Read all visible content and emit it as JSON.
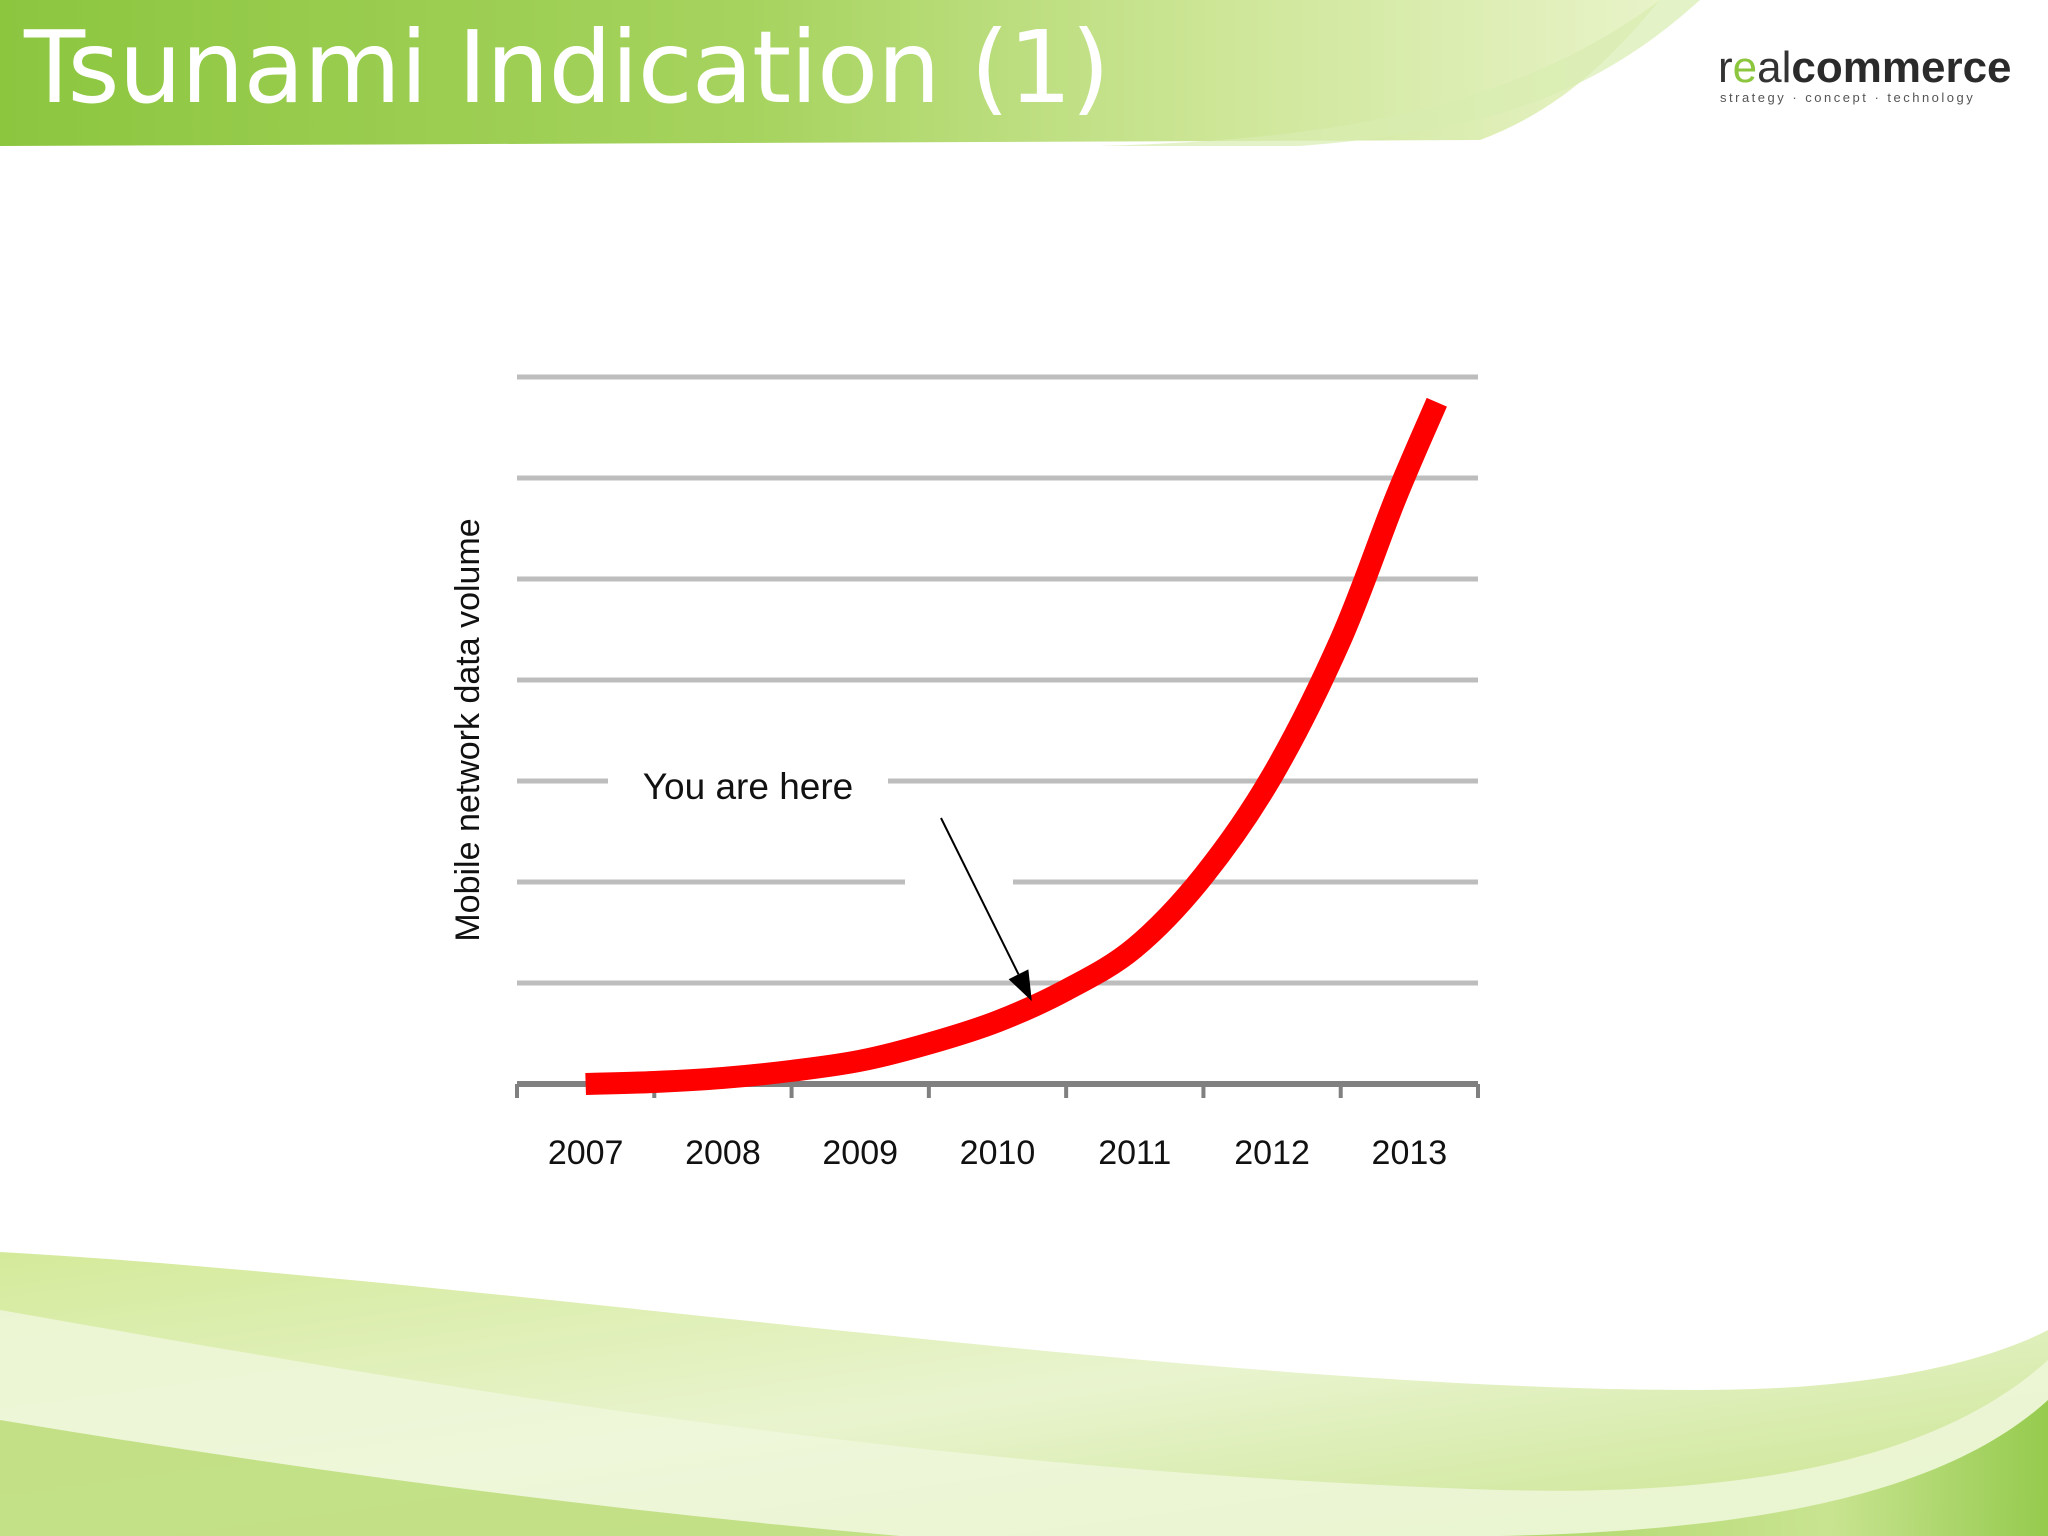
{
  "slide": {
    "title": "Tsunami Indication (1)",
    "logo": {
      "part1": "r",
      "part2": "e",
      "part3": "al",
      "part4": "commerce",
      "tagline": "strategy · concept · technology"
    },
    "colors": {
      "header_green": "#8cc63f",
      "light_green": "#d6eba0",
      "curve_red": "#ff0000",
      "grid_gray": "#bdbdbd"
    }
  },
  "chart_data": {
    "type": "line",
    "title": "",
    "xlabel": "",
    "ylabel": "Mobile network data volume",
    "categories": [
      "2007",
      "2008",
      "2009",
      "2010",
      "2011",
      "2012",
      "2013"
    ],
    "x": [
      2007,
      2008,
      2009,
      2010,
      2011,
      2012,
      2013
    ],
    "y_gridlines": 7,
    "ylim": [
      0,
      7
    ],
    "grid": true,
    "legend": "none",
    "series": [
      {
        "color": "#ff0000",
        "points": [
          [
            2007,
            0.0
          ],
          [
            2007.5,
            0.02
          ],
          [
            2008,
            0.06
          ],
          [
            2008.5,
            0.13
          ],
          [
            2009,
            0.23
          ],
          [
            2009.5,
            0.4
          ],
          [
            2010,
            0.62
          ],
          [
            2010.5,
            0.93
          ],
          [
            2011,
            1.35
          ],
          [
            2011.5,
            2.06
          ],
          [
            2012,
            3.05
          ],
          [
            2012.5,
            4.4
          ],
          [
            2012.9,
            5.8
          ],
          [
            2013.2,
            6.75
          ]
        ]
      }
    ],
    "annotations": [
      {
        "text": "You are here",
        "target_x": 2010.25,
        "target_y": 0.82
      }
    ]
  }
}
